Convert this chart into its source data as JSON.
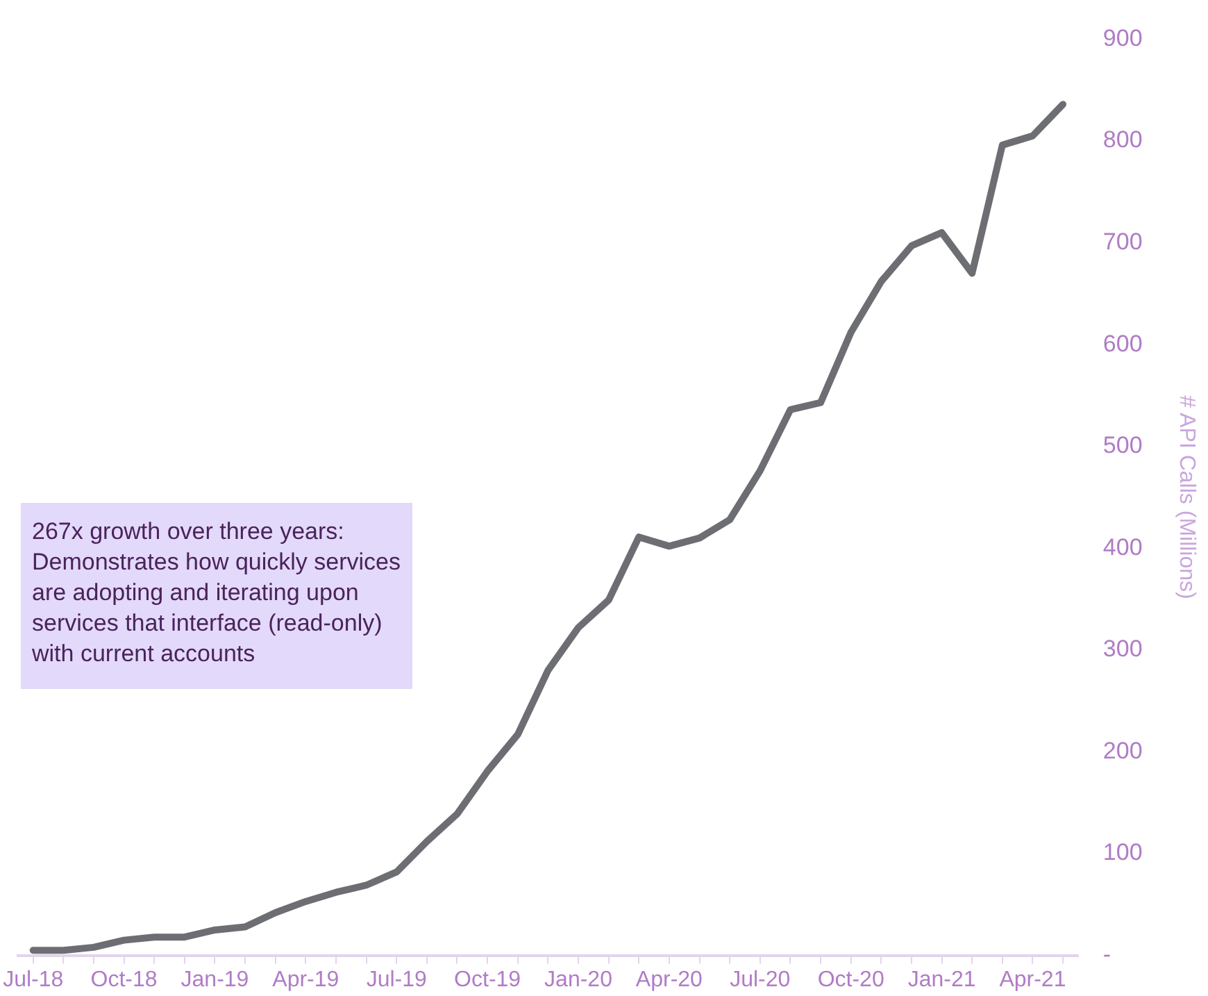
{
  "chart_data": {
    "type": "line",
    "y2label": "# API Calls (Millions)",
    "categories": [
      "Jul-18",
      null,
      null,
      "Oct-18",
      null,
      null,
      "Jan-19",
      null,
      null,
      "Apr-19",
      null,
      null,
      "Jul-19",
      null,
      null,
      "Oct-19",
      null,
      null,
      "Jan-20",
      null,
      null,
      "Apr-20",
      null,
      null,
      "Jul-20",
      null,
      null,
      "Oct-20",
      null,
      null,
      "Jan-21",
      null,
      null,
      "Apr-21",
      null
    ],
    "series": [
      {
        "color": "#6d6e73",
        "axis": "y2",
        "values": [
          5,
          5,
          8,
          15,
          18,
          18,
          25,
          28,
          42,
          53,
          62,
          69,
          82,
          112,
          139,
          181,
          217,
          280,
          322,
          349,
          411,
          402,
          410,
          428,
          476,
          536,
          543,
          612,
          662,
          697,
          710,
          670,
          796,
          805,
          836
        ]
      }
    ],
    "y2lim": [
      0,
      900
    ],
    "y2ticks": [
      {
        "value": 0,
        "label": "-"
      },
      100,
      200,
      300,
      400,
      500,
      600,
      700,
      800,
      900
    ],
    "grid": false,
    "legend": false,
    "annotations": [
      "267x growth over three years: Demonstrates how quickly services are adopting and iterating upon services that interface (read-only) with current accounts"
    ]
  }
}
